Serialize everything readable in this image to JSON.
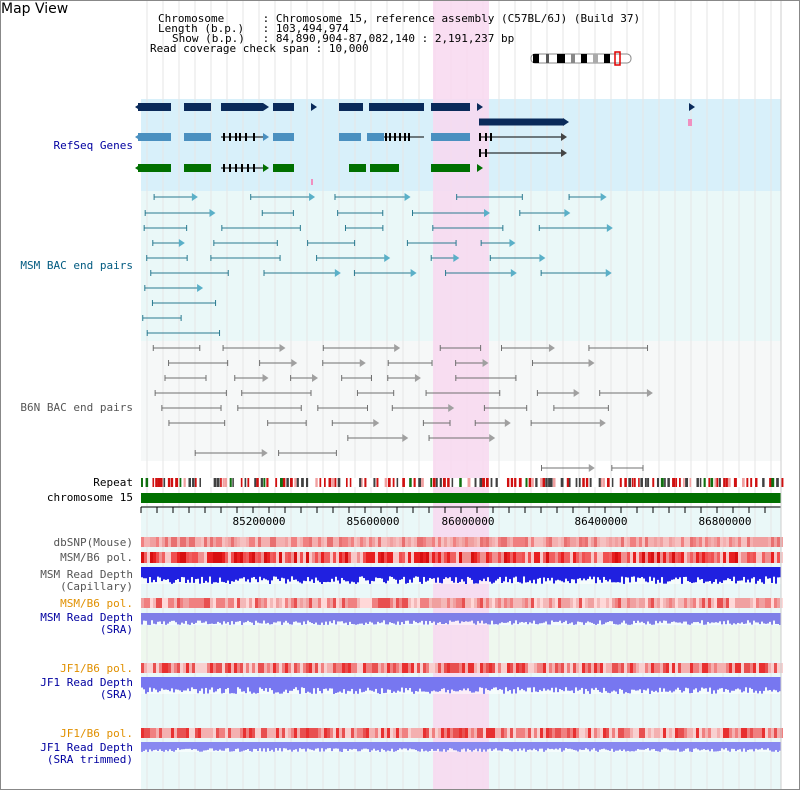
{
  "header": {
    "title": "Map View",
    "chromosome_label": "Chromosome",
    "chromosome_value": "Chromosome 15, reference assembly (C57BL/6J) (Build 37)",
    "length_label": "Length (b.p.)",
    "length_value": "103,494,974",
    "show_label": "Show (b.p.)",
    "show_value": "84,890,904-87,082,140 : 2,191,237 bp",
    "coverage_label": "Read coverage check span",
    "coverage_value": "10,000"
  },
  "tracks": {
    "refseq": "RefSeq Genes",
    "msm_bac": "MSM BAC end pairs",
    "b6n_bac": "B6N BAC end pairs",
    "repeat": "Repeat",
    "chromosome": "chromosome 15",
    "dbsnp": "dbSNP(Mouse)",
    "msm_b6_pol_1": "MSM/B6 pol.",
    "msm_read_depth_cap_1": "MSM Read Depth",
    "msm_read_depth_cap_2": "(Capillary)",
    "msm_b6_pol_2": "MSM/B6 pol.",
    "msm_read_depth_sra_1": "MSM Read Depth",
    "msm_read_depth_sra_2": "(SRA)",
    "jf1_b6_pol_1": "JF1/B6 pol.",
    "jf1_read_depth_sra_1": "JF1 Read Depth",
    "jf1_read_depth_sra_2": "(SRA)",
    "jf1_b6_pol_2": "JF1/B6 pol.",
    "jf1_read_depth_trim_1": "JF1 Read Depth",
    "jf1_read_depth_trim_2": "(SRA trimmed)"
  },
  "ruler": {
    "ticks": [
      "85200000",
      "85600000",
      "86000000",
      "86400000",
      "86800000"
    ]
  },
  "colors": {
    "refseq_bg": "#d8f0fa",
    "bac_bg": "#eaf8f8",
    "highlight": "#f8d8f0",
    "gene_dark": "#0a2a5a",
    "gene_mid": "#4a90c0",
    "gene_green": "#007000",
    "chrom_green": "#007000",
    "label_blue": "#0000a0",
    "label_teal": "#005a80",
    "label_orange": "#e09000",
    "depth_blue": "#2020e0",
    "depth_light": "#8888f0"
  }
}
